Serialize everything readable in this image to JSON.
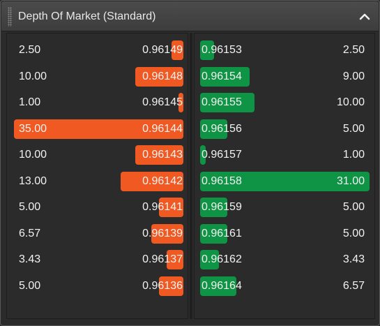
{
  "header": {
    "title": "Depth Of Market (Standard)",
    "collapse_icon": "chevron-up-icon"
  },
  "colors": {
    "bid_bar": "#f05a22",
    "ask_bar": "#0e9444",
    "background": "#2b2b2b",
    "text": "#f2f2f2"
  },
  "bids": [
    {
      "volume": "2.50",
      "price": "0.96149"
    },
    {
      "volume": "10.00",
      "price": "0.96148"
    },
    {
      "volume": "1.00",
      "price": "0.96145"
    },
    {
      "volume": "35.00",
      "price": "0.96144"
    },
    {
      "volume": "10.00",
      "price": "0.96143"
    },
    {
      "volume": "13.00",
      "price": "0.96142"
    },
    {
      "volume": "5.00",
      "price": "0.96141"
    },
    {
      "volume": "6.57",
      "price": "0.96139"
    },
    {
      "volume": "3.43",
      "price": "0.96137"
    },
    {
      "volume": "5.00",
      "price": "0.96136"
    }
  ],
  "asks": [
    {
      "price": "0.96153",
      "volume": "2.50"
    },
    {
      "price": "0.96154",
      "volume": "9.00"
    },
    {
      "price": "0.96155",
      "volume": "10.00"
    },
    {
      "price": "0.96156",
      "volume": "5.00"
    },
    {
      "price": "0.96157",
      "volume": "1.00"
    },
    {
      "price": "0.96158",
      "volume": "31.00"
    },
    {
      "price": "0.96159",
      "volume": "5.00"
    },
    {
      "price": "0.96161",
      "volume": "5.00"
    },
    {
      "price": "0.96162",
      "volume": "3.43"
    },
    {
      "price": "0.96164",
      "volume": "6.57"
    }
  ]
}
